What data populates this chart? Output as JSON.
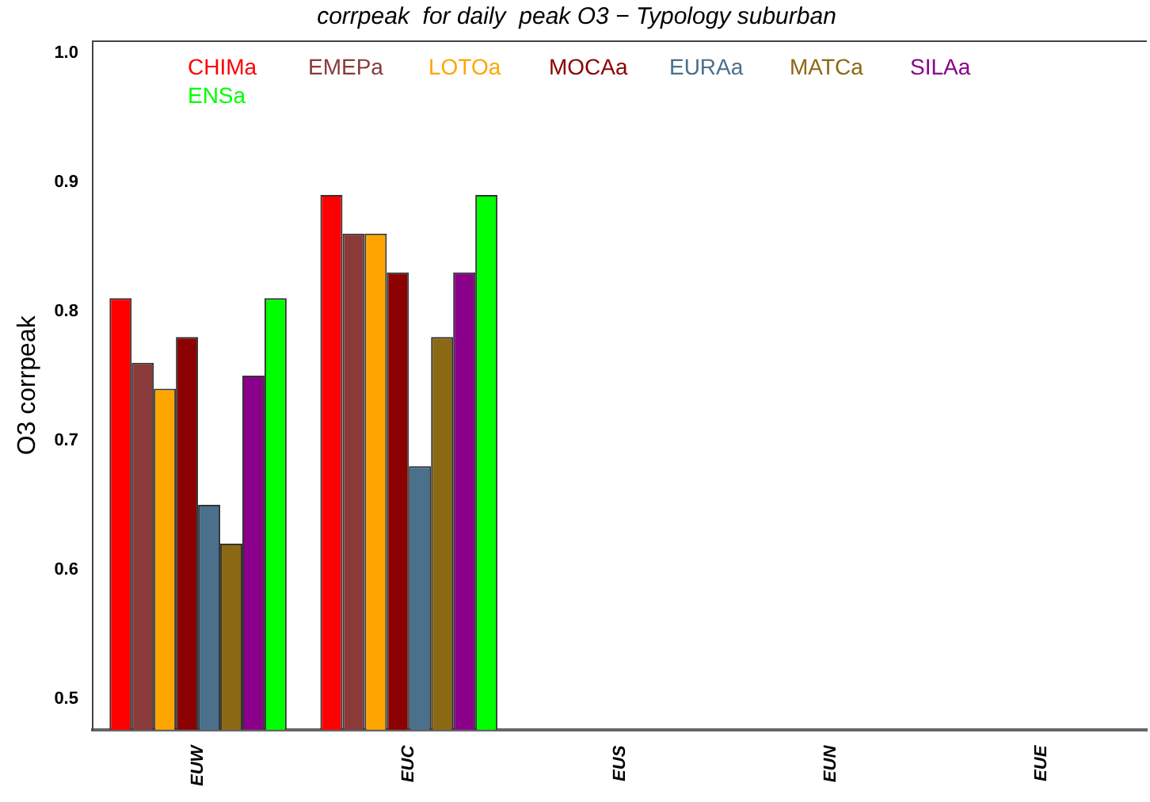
{
  "chart_data": {
    "type": "bar",
    "title": "corrpeak  for daily  peak O3 − Typology suburban",
    "ylabel": "O3 corrpeak",
    "categories": [
      "EUW",
      "EUC",
      "EUS",
      "EUN",
      "EUE"
    ],
    "series": [
      {
        "name": "CHIMa",
        "color": "#ff0000",
        "values": [
          0.81,
          0.89,
          null,
          null,
          null
        ]
      },
      {
        "name": "EMEPa",
        "color": "#8b3a3a",
        "values": [
          0.76,
          0.86,
          null,
          null,
          null
        ]
      },
      {
        "name": "LOTOa",
        "color": "#ffa500",
        "values": [
          0.74,
          0.86,
          null,
          null,
          null
        ]
      },
      {
        "name": "MOCAa",
        "color": "#8b0000",
        "values": [
          0.78,
          0.83,
          null,
          null,
          null
        ]
      },
      {
        "name": "EURAa",
        "color": "#4a708b",
        "values": [
          0.65,
          0.68,
          null,
          null,
          null
        ]
      },
      {
        "name": "MATCa",
        "color": "#8b6914",
        "values": [
          0.62,
          0.78,
          null,
          null,
          null
        ]
      },
      {
        "name": "SILAa",
        "color": "#8b008b",
        "values": [
          0.75,
          0.83,
          null,
          null,
          null
        ]
      },
      {
        "name": "ENSa",
        "color": "#00ff00",
        "values": [
          0.81,
          0.89,
          null,
          null,
          null
        ]
      }
    ],
    "ylim": [
      0.476,
      1.009
    ],
    "yticks": [
      0.5,
      0.6,
      0.7,
      0.8,
      0.9,
      {
        "value": 1,
        "label": "1.0"
      }
    ],
    "grid": false,
    "legend": "top left"
  }
}
